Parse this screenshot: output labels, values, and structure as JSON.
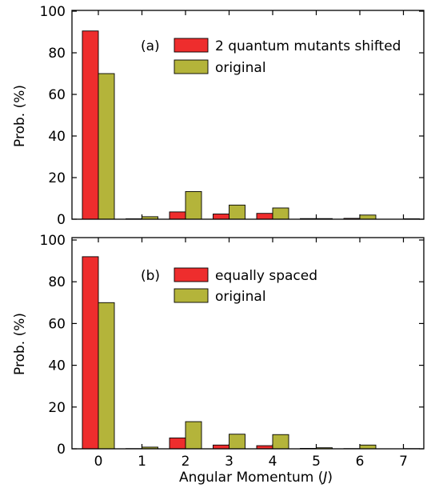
{
  "chart_data": [
    {
      "type": "bar",
      "panel_label": "(a)",
      "categories": [
        "0",
        "1",
        "2",
        "3",
        "4",
        "5",
        "6",
        "7"
      ],
      "series": [
        {
          "name": "2 quantum mutants shifted",
          "color": "#ee2d2d",
          "values": [
            90.5,
            0.2,
            3.5,
            2.5,
            2.8,
            0.3,
            0.4,
            0
          ]
        },
        {
          "name": "original",
          "color": "#b4b43a",
          "values": [
            70.0,
            1.2,
            13.3,
            6.8,
            5.4,
            0.3,
            2.0,
            0.2
          ]
        }
      ],
      "ylabel": "Prob. (%)",
      "xlabel": "",
      "ylim": [
        0,
        100
      ],
      "yticks": [
        "0",
        "20",
        "40",
        "60",
        "80",
        "100"
      ],
      "legend_position": "top-right"
    },
    {
      "type": "bar",
      "panel_label": "(b)",
      "categories": [
        "0",
        "1",
        "2",
        "3",
        "4",
        "5",
        "6",
        "7"
      ],
      "series": [
        {
          "name": "equally spaced",
          "color": "#ee2d2d",
          "values": [
            92.0,
            0.1,
            5.2,
            1.8,
            1.5,
            0.2,
            0.1,
            0
          ]
        },
        {
          "name": "original",
          "color": "#b4b43a",
          "values": [
            70.0,
            0.8,
            13.0,
            7.0,
            6.8,
            0.5,
            1.8,
            0.1
          ]
        }
      ],
      "ylabel": "Prob. (%)",
      "xlabel": "Angular Momentum",
      "xlabel_symbol": "J",
      "ylim": [
        0,
        100
      ],
      "yticks": [
        "0",
        "20",
        "40",
        "60",
        "80",
        "100"
      ],
      "legend_position": "top-right"
    }
  ]
}
